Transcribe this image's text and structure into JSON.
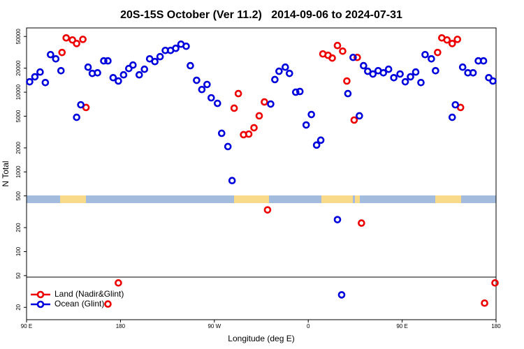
{
  "chart_data": {
    "type": "scatter",
    "title": "20S-15S October (Ver 11.2)   2014-09-06 to 2024-07-31",
    "xlabel": "Longitude (deg E)",
    "ylabel": "N Total",
    "xlim": [
      90,
      540
    ],
    "xticks": [
      {
        "value": 90,
        "label": "90 E"
      },
      180,
      {
        "value": 270,
        "label": "90 W"
      },
      {
        "value": 360,
        "label": "0"
      },
      {
        "value": 450,
        "label": "90 E"
      },
      {
        "value": 540,
        "label": "180"
      }
    ],
    "ylim": [
      14,
      64000
    ],
    "log_y": true,
    "yticks": [
      20,
      50,
      100,
      200,
      500,
      1000,
      2000,
      5000,
      10000,
      20000,
      50000
    ],
    "legend": "lower left",
    "series": [
      {
        "name": "Land (Nadir&Glint)",
        "color": "#ee0000",
        "x": [
          124,
          128,
          134,
          138,
          144,
          147,
          178,
          168,
          289,
          293,
          298,
          303,
          308,
          313,
          318,
          321,
          374,
          379,
          383,
          388,
          393,
          397,
          404,
          407,
          411,
          484,
          488,
          493,
          498,
          503,
          506,
          529,
          539
        ],
        "values": [
          31500,
          48000,
          45200,
          40800,
          46000,
          6430,
          40.5,
          22,
          6300,
          9600,
          2930,
          2980,
          3580,
          5050,
          7540,
          334,
          30200,
          29000,
          26800,
          38500,
          32700,
          13800,
          4470,
          27300,
          228,
          31500,
          48000,
          45200,
          40800,
          46000,
          6430,
          22.6,
          40.5
        ]
      },
      {
        "name": "Ocean (Glint)",
        "color": "#0000dd",
        "x": [
          93,
          98,
          103,
          108,
          113,
          118,
          123,
          138,
          142,
          149,
          153,
          158,
          164,
          168,
          173,
          178,
          183,
          188,
          192,
          198,
          203,
          208,
          213,
          218,
          223,
          228,
          233,
          238,
          243,
          247,
          253,
          258,
          263,
          267,
          273,
          277,
          283,
          287,
          324,
          328,
          332,
          338,
          342,
          348,
          352,
          358,
          363,
          368,
          372,
          388,
          392,
          398,
          403,
          409,
          413,
          417,
          422,
          427,
          432,
          437,
          442,
          448,
          453,
          458,
          463,
          468,
          472,
          478,
          482,
          498,
          501,
          508,
          513,
          518,
          523,
          528,
          533,
          537
        ],
        "values": [
          13500,
          15600,
          17900,
          13200,
          29600,
          26200,
          18600,
          4840,
          6950,
          20600,
          17200,
          17500,
          24700,
          24700,
          15200,
          13800,
          16500,
          19800,
          21900,
          16500,
          19400,
          26200,
          24200,
          27900,
          33400,
          33400,
          35500,
          40000,
          37700,
          21500,
          14100,
          10800,
          12500,
          8500,
          7240,
          3050,
          2080,
          778,
          7100,
          14400,
          18300,
          20600,
          17200,
          10000,
          10200,
          3880,
          5250,
          2170,
          2500,
          252,
          28.7,
          9600,
          27300,
          5050,
          21500,
          18300,
          16900,
          18600,
          17500,
          19400,
          15200,
          16900,
          13500,
          15600,
          17900,
          13200,
          29600,
          26200,
          18600,
          4840,
          6950,
          20600,
          17500,
          17500,
          24700,
          24700,
          15200,
          13800
        ]
      }
    ]
  }
}
